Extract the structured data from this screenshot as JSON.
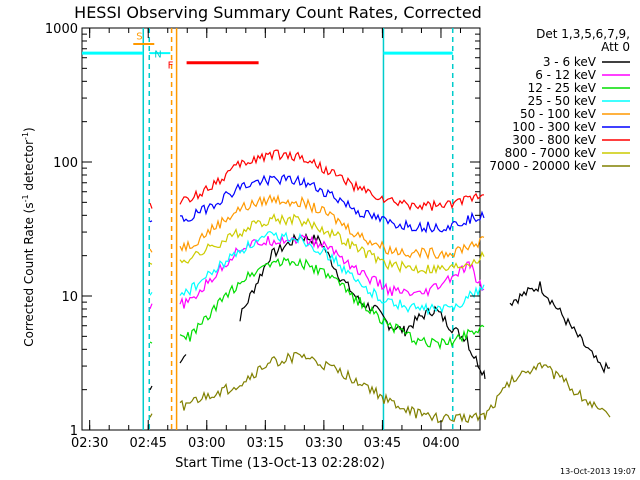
{
  "chart_data": {
    "type": "line",
    "title": "HESSI Observing Summary Count Rates, Corrected",
    "xlabel": "Start Time (13-Oct-13 02:28:02)",
    "ylabel": "Corrected Count Rate (s⁻¹ detector⁻¹)",
    "ylabel_parts": {
      "main": "Corrected Count Rate (s",
      "sup1": "-1",
      "mid": " detector",
      "sup2": "-1",
      "end": ")"
    },
    "y_scale": "log",
    "ylim": [
      1,
      1000
    ],
    "xlim": [
      "02:28:02",
      "04:10:00"
    ],
    "x_ticks": [
      "02:30",
      "02:45",
      "03:00",
      "03:15",
      "03:30",
      "03:45",
      "04:00"
    ],
    "y_ticks": [
      "1",
      "10",
      "100",
      "1000"
    ],
    "legend": {
      "header": [
        "Det 1,3,5,6,7,9,",
        "Att 0"
      ],
      "placement": "top-right outside"
    },
    "series": [
      {
        "name": "3 - 6 keV",
        "color": "#000000",
        "points": [
          [
            150,
            2.0
          ],
          [
            160,
            2.6
          ],
          [
            170,
            3.1
          ],
          [
            180,
            3.4
          ],
          [
            240,
            7
          ],
          [
            270,
            20
          ],
          [
            300,
            28
          ],
          [
            320,
            26
          ],
          [
            340,
            14
          ],
          [
            360,
            9
          ],
          [
            375,
            8
          ],
          [
            390,
            6
          ],
          [
            405,
            5.5
          ],
          [
            420,
            7
          ],
          [
            435,
            8
          ],
          [
            450,
            6
          ],
          [
            462,
            5
          ],
          [
            467,
            5
          ],
          [
            470,
            4
          ],
          [
            480,
            3
          ],
          [
            485,
            2.6
          ],
          [
            510,
            9
          ],
          [
            540,
            12
          ],
          [
            570,
            6
          ],
          [
            600,
            3
          ],
          [
            612,
            2.8
          ]
        ],
        "gaps": [
          [
            187,
            239
          ],
          [
            486,
            509
          ]
        ]
      },
      {
        "name": "6 - 12 keV",
        "color": "#ff00ff",
        "points": [
          [
            150,
            8
          ],
          [
            190,
            9
          ],
          [
            240,
            23
          ],
          [
            270,
            26
          ],
          [
            300,
            27
          ],
          [
            330,
            23
          ],
          [
            360,
            15
          ],
          [
            390,
            11
          ],
          [
            420,
            10
          ],
          [
            440,
            12
          ],
          [
            465,
            16
          ],
          [
            470,
            17
          ],
          [
            480,
            12
          ],
          [
            485,
            11
          ]
        ],
        "gaps": []
      },
      {
        "name": "12 - 25 keV",
        "color": "#00dd00",
        "points": [
          [
            150,
            4.5
          ],
          [
            190,
            5
          ],
          [
            240,
            13
          ],
          [
            270,
            18
          ],
          [
            300,
            18
          ],
          [
            330,
            14
          ],
          [
            360,
            9
          ],
          [
            390,
            6
          ],
          [
            420,
            4.5
          ],
          [
            450,
            4.5
          ],
          [
            470,
            5.5
          ],
          [
            485,
            6
          ]
        ],
        "gaps": []
      },
      {
        "name": "25 - 50 keV",
        "color": "#00ffff",
        "points": [
          [
            150,
            10
          ],
          [
            190,
            11
          ],
          [
            240,
            22
          ],
          [
            270,
            28
          ],
          [
            300,
            27
          ],
          [
            330,
            20
          ],
          [
            360,
            12
          ],
          [
            390,
            9
          ],
          [
            420,
            8
          ],
          [
            450,
            8
          ],
          [
            470,
            10
          ],
          [
            485,
            12
          ]
        ],
        "gaps": []
      },
      {
        "name": "50 - 100 keV",
        "color": "#ff9900",
        "points": [
          [
            150,
            22
          ],
          [
            190,
            24
          ],
          [
            240,
            45
          ],
          [
            270,
            53
          ],
          [
            300,
            51
          ],
          [
            330,
            40
          ],
          [
            360,
            28
          ],
          [
            390,
            22
          ],
          [
            420,
            21
          ],
          [
            450,
            21
          ],
          [
            470,
            24
          ],
          [
            485,
            26
          ]
        ],
        "gaps": []
      },
      {
        "name": "100 - 300 keV",
        "color": "#0000ff",
        "points": [
          [
            150,
            35
          ],
          [
            190,
            38
          ],
          [
            240,
            65
          ],
          [
            270,
            75
          ],
          [
            300,
            72
          ],
          [
            330,
            58
          ],
          [
            360,
            42
          ],
          [
            390,
            35
          ],
          [
            420,
            33
          ],
          [
            450,
            33
          ],
          [
            470,
            38
          ],
          [
            485,
            42
          ]
        ],
        "gaps": []
      },
      {
        "name": "300 - 800 keV",
        "color": "#ff0000",
        "points": [
          [
            150,
            48
          ],
          [
            190,
            52
          ],
          [
            240,
            95
          ],
          [
            270,
            115
          ],
          [
            300,
            110
          ],
          [
            330,
            85
          ],
          [
            360,
            62
          ],
          [
            390,
            50
          ],
          [
            420,
            47
          ],
          [
            450,
            47
          ],
          [
            470,
            55
          ],
          [
            485,
            60
          ]
        ],
        "gaps": []
      },
      {
        "name": "800 - 7000 keV",
        "color": "#cccc00",
        "points": [
          [
            150,
            17
          ],
          [
            190,
            19
          ],
          [
            240,
            30
          ],
          [
            270,
            38
          ],
          [
            300,
            37
          ],
          [
            330,
            30
          ],
          [
            360,
            22
          ],
          [
            390,
            17
          ],
          [
            420,
            16
          ],
          [
            450,
            16
          ],
          [
            470,
            18
          ],
          [
            485,
            20
          ]
        ],
        "gaps": []
      },
      {
        "name": "7000 - 20000 keV",
        "color": "#808000",
        "points": [
          [
            150,
            1.2
          ],
          [
            170,
            1.4
          ],
          [
            240,
            2.2
          ],
          [
            270,
            3.2
          ],
          [
            300,
            3.6
          ],
          [
            330,
            2.9
          ],
          [
            360,
            2.3
          ],
          [
            390,
            1.6
          ],
          [
            420,
            1.3
          ],
          [
            450,
            1.2
          ],
          [
            485,
            1.3
          ],
          [
            510,
            2.3
          ],
          [
            540,
            3.2
          ],
          [
            570,
            2.1
          ],
          [
            600,
            1.4
          ],
          [
            612,
            1.2
          ]
        ],
        "gaps": []
      }
    ],
    "flags": [
      {
        "label": "S",
        "color": "#ff9900"
      },
      {
        "label": "N",
        "color": "#00cccc"
      },
      {
        "label": "F",
        "color": "#ff0000"
      }
    ],
    "plot_date": "13-Oct-2013 19:07"
  }
}
